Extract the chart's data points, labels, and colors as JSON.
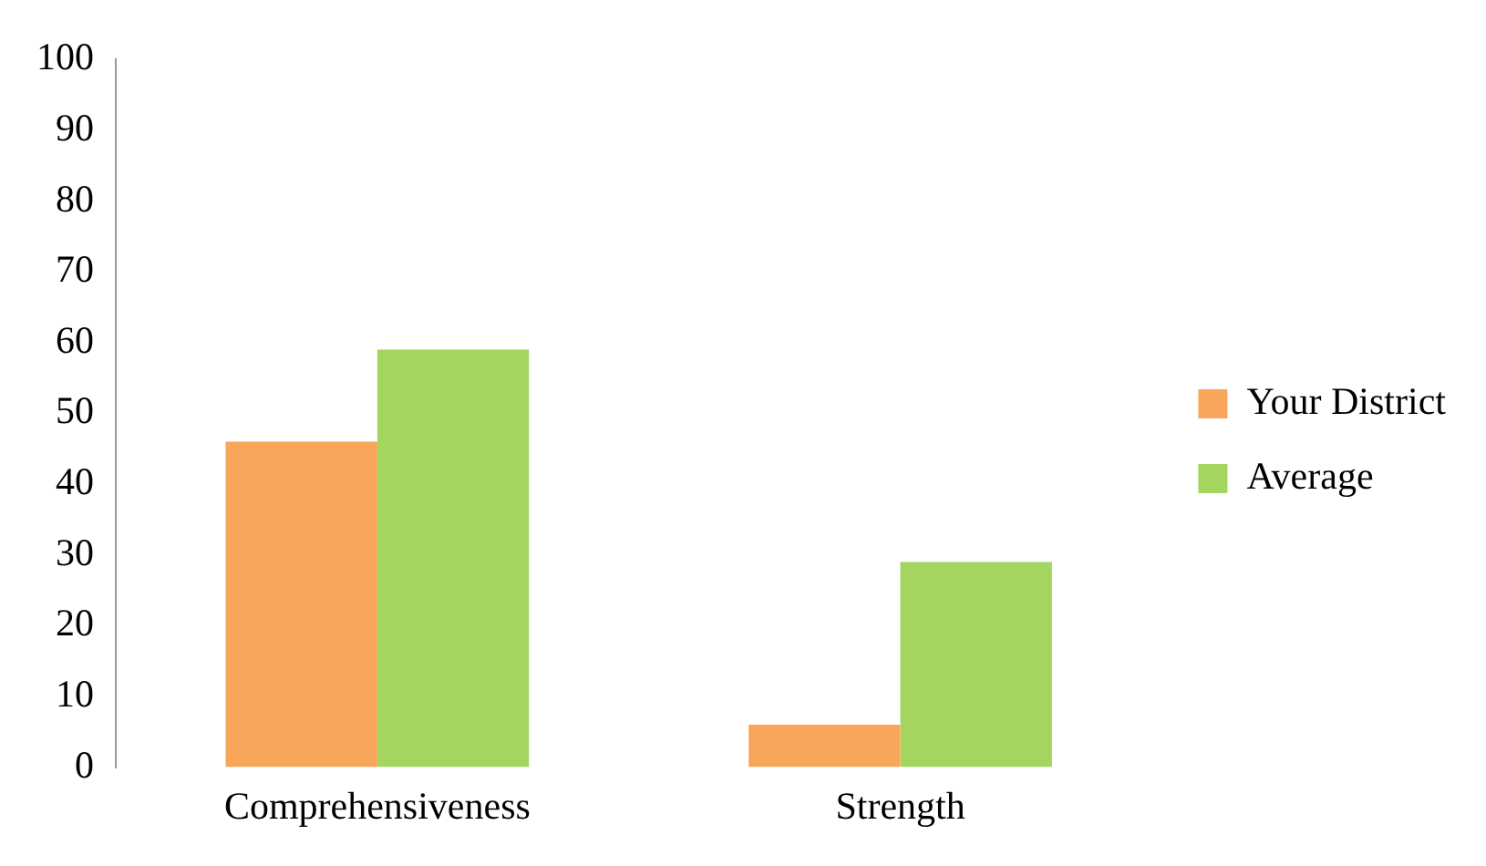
{
  "chart_data": {
    "type": "bar",
    "categories": [
      "Comprehensiveness",
      "Strength"
    ],
    "series": [
      {
        "name": "Your District",
        "color": "#f7a65a",
        "values": [
          46,
          6
        ]
      },
      {
        "name": "Average",
        "color": "#a3d55f",
        "values": [
          59,
          29
        ]
      }
    ],
    "ylim": [
      0,
      100
    ],
    "yticks": [
      0,
      10,
      20,
      30,
      40,
      50,
      60,
      70,
      80,
      90,
      100
    ],
    "grid": false,
    "legend": "right"
  }
}
